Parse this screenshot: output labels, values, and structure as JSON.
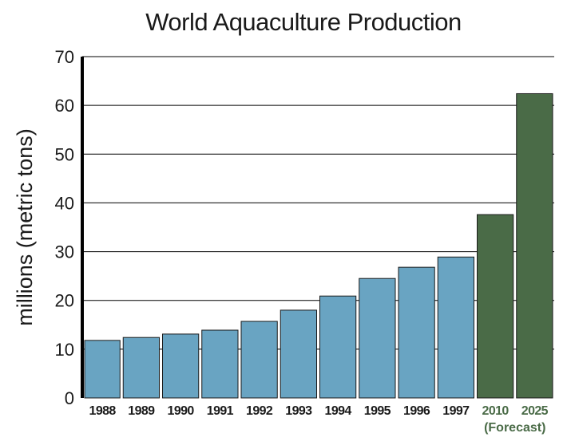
{
  "chart_data": {
    "type": "bar",
    "title": "World Aquaculture Production",
    "ylabel": "millions (metric tons)",
    "xlabel": "",
    "ylim": [
      0,
      70
    ],
    "yticks": [
      "0",
      "10",
      "20",
      "30",
      "40",
      "50",
      "60",
      "70"
    ],
    "grid": true,
    "categories": [
      "1988",
      "1989",
      "1990",
      "1991",
      "1992",
      "1993",
      "1994",
      "1995",
      "1996",
      "1997",
      "2010",
      "2025"
    ],
    "values": [
      11.8,
      12.4,
      13.1,
      13.9,
      15.7,
      18.0,
      20.9,
      24.5,
      26.8,
      28.9,
      37.6,
      62.4
    ],
    "forecast_flags": [
      false,
      false,
      false,
      false,
      false,
      false,
      false,
      false,
      false,
      false,
      true,
      true
    ],
    "annotation": "(Forecast)",
    "colors": {
      "actual": "#69a4c2",
      "forecast": "#4a6b47"
    }
  }
}
